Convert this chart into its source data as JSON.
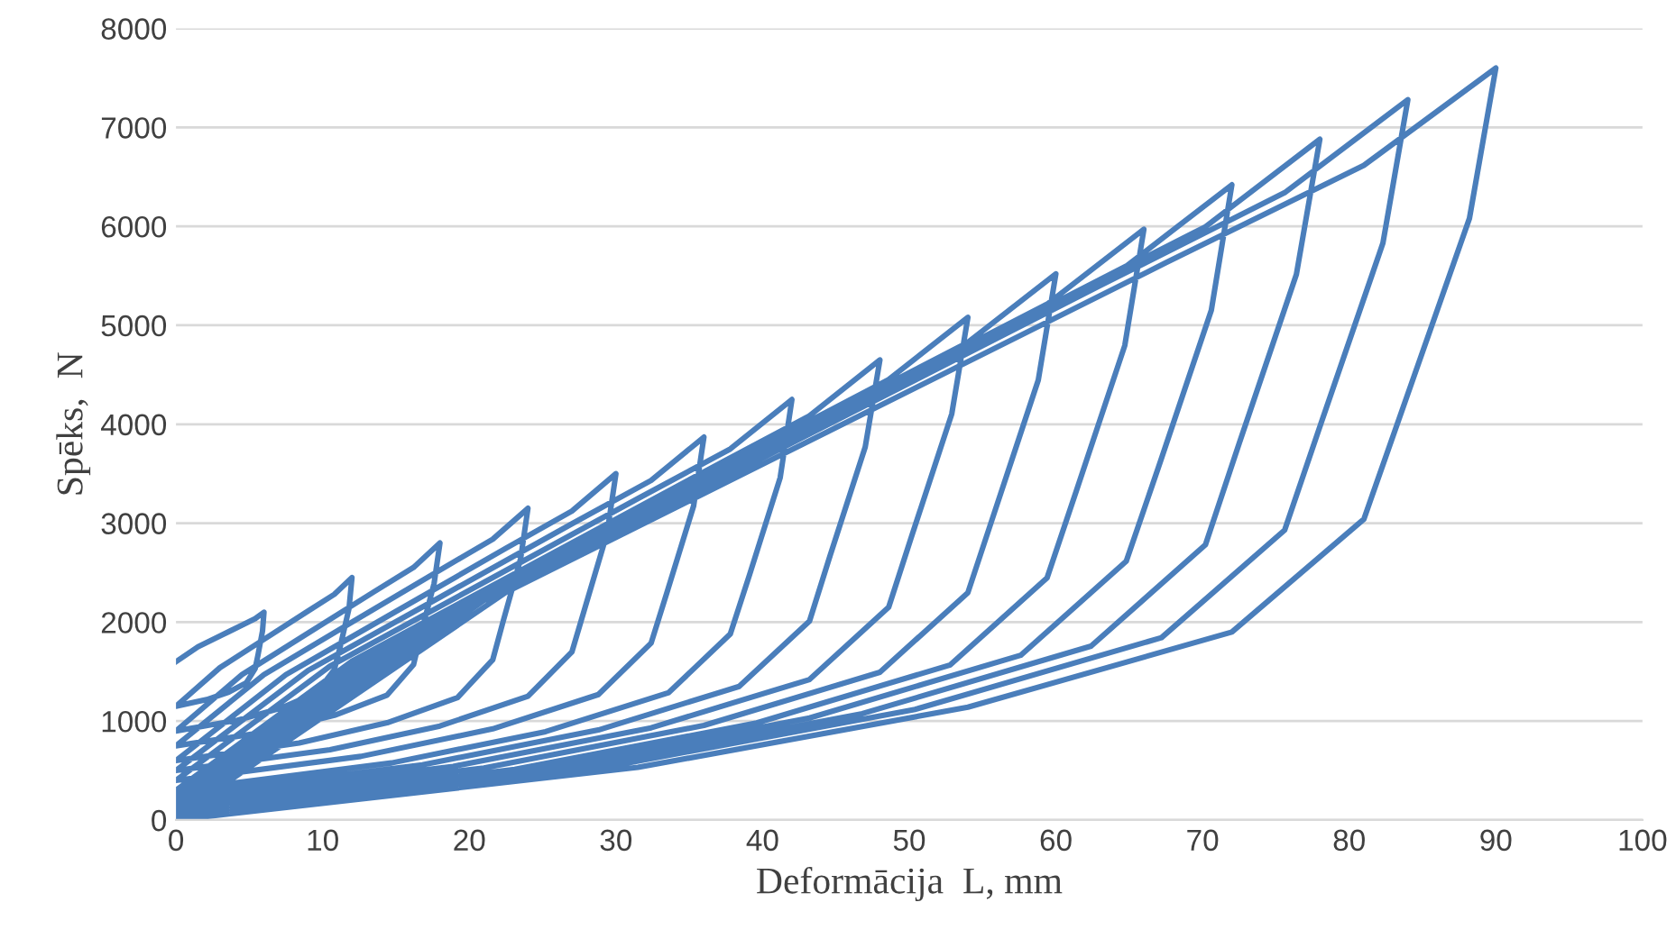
{
  "chart_data": {
    "type": "line",
    "xlabel": "Deformācija  L, mm",
    "ylabel": "Spēks,  N",
    "xlim": [
      0,
      100
    ],
    "xticks": [
      0,
      10,
      20,
      30,
      40,
      50,
      60,
      70,
      80,
      90,
      100
    ],
    "ylim": [
      0,
      8000
    ],
    "yticks": [
      0,
      1000,
      2000,
      3000,
      4000,
      5000,
      6000,
      7000,
      8000
    ],
    "grid": "y",
    "line_style": "solid",
    "marker": "none",
    "series": [
      {
        "color": "#4a7ebb",
        "x": [
          0,
          1.5,
          3,
          4.5,
          5.4,
          6,
          5.9,
          5.6,
          5.4,
          4.8,
          3.6,
          2.1,
          0,
          3,
          6,
          9,
          10.8,
          12,
          11.8,
          11.2,
          10.8,
          9.6,
          7.2,
          4.2,
          0,
          4.5,
          9,
          13.5,
          16.2,
          18,
          17.6,
          16.7,
          16.2,
          14.4,
          10.8,
          6.3,
          0,
          6,
          12,
          18,
          21.6,
          24,
          23.5,
          22.3,
          21.6,
          19.2,
          14.4,
          8.4,
          0,
          7.5,
          15,
          22.5,
          27,
          30,
          29.4,
          27.9,
          27,
          24,
          18,
          10.5,
          0,
          9,
          18,
          27,
          32.4,
          36,
          35.3,
          33.5,
          32.4,
          28.8,
          21.6,
          12.6,
          0,
          10.5,
          21,
          31.5,
          37.8,
          42,
          41.2,
          39.1,
          37.8,
          33.6,
          25.2,
          14.7,
          0,
          12,
          24,
          36,
          43.2,
          48,
          47,
          44.6,
          43.2,
          38.4,
          28.8,
          16.8,
          0,
          13.5,
          27,
          40.5,
          48.6,
          54,
          52.9,
          50.2,
          48.6,
          43.2,
          32.4,
          18.9,
          0,
          15,
          30,
          45,
          54,
          60,
          58.8,
          55.8,
          54,
          48,
          36,
          21,
          0,
          16.5,
          33,
          49.5,
          59.4,
          66,
          64.7,
          61.4,
          59.4,
          52.8,
          39.6,
          23.1,
          0,
          18,
          36,
          54,
          64.8,
          72,
          70.6,
          67,
          64.8,
          57.6,
          43.2,
          25.2,
          0,
          19.5,
          39,
          58.5,
          70.2,
          78,
          76.4,
          72.5,
          70.2,
          62.4,
          46.8,
          27.3,
          0,
          21,
          42,
          63,
          75.6,
          84,
          82.3,
          78.1,
          75.6,
          67.2,
          50.4,
          29.4,
          0,
          22.5,
          45,
          67.5,
          81,
          90,
          88.2,
          83.7,
          81,
          72,
          54,
          31.5,
          0
        ],
        "values": [
          1600,
          1750,
          1860,
          1970,
          2035,
          2100,
          1910,
          1673,
          1530,
          1388,
          1293,
          1217,
          1150,
          1540,
          1826,
          2112,
          2281,
          2450,
          2140,
          1753,
          1520,
          1288,
          1133,
          1009,
          900,
          1470,
          1888,
          2306,
          2553,
          2800,
          2390,
          1878,
          1570,
          1263,
          1058,
          894,
          750,
          1470,
          2000,
          2526,
          2838,
          3150,
          2640,
          2003,
          1620,
          1238,
          983,
          779,
          600,
          1470,
          2108,
          2746,
          3123,
          3500,
          2900,
          2150,
          1700,
          1250,
          950,
          710,
          500,
          1511,
          2252,
          2994,
          3432,
          3870,
          3176,
          2309,
          1788,
          1268,
          921,
          643,
          400,
          1555,
          2402,
          3249,
          3750,
          4250,
          3460,
          2473,
          1880,
          1288,
          893,
          577,
          300,
          1605,
          2562,
          3519,
          4085,
          4650,
          3770,
          2670,
          2010,
          1350,
          910,
          558,
          250,
          1699,
          2762,
          3824,
          4452,
          5080,
          4104,
          2884,
          2152,
          1420,
          932,
          542,
          200,
          1796,
          2966,
          4137,
          4828,
          5520,
          4446,
          3104,
          2298,
          1493,
          956,
          526,
          150,
          1896,
          3176,
          4457,
          5213,
          5970,
          4796,
          3329,
          2448,
          1568,
          981,
          511,
          100,
          1996,
          3386,
          4777,
          5598,
          6420,
          5152,
          3567,
          2616,
          1665,
          1031,
          524,
          80,
          2120,
          3616,
          5112,
          5996,
          6880,
          5514,
          3807,
          2782,
          1758,
          1075,
          528,
          50,
          2219,
          3810,
          5400,
          6340,
          7280,
          5830,
          4018,
          2930,
          1843,
          1118,
          538,
          30,
          2301,
          3966,
          5632,
          6616,
          7600,
          6080,
          4180,
          3040,
          1900,
          1140,
          532,
          0
        ]
      }
    ]
  }
}
